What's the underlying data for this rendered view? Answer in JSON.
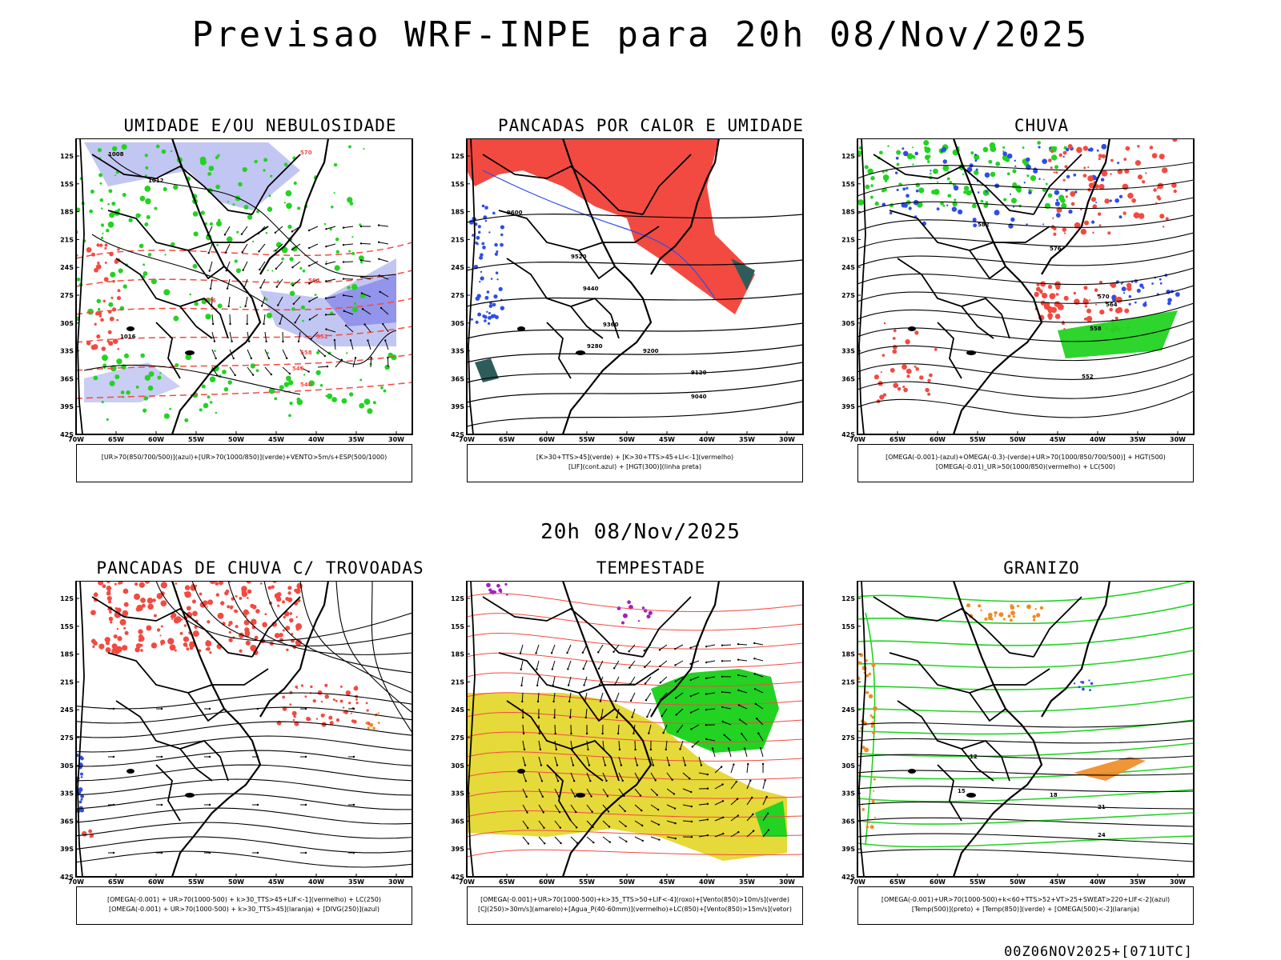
{
  "page": {
    "title": "Previsao WRF-INPE  para 20h 08/Nov/2025",
    "mid_title": "20h 08/Nov/2025",
    "run_stamp": "00Z06NOV2025+[071UTC]"
  },
  "axes": {
    "lat_labels": [
      "12S",
      "15S",
      "18S",
      "21S",
      "24S",
      "27S",
      "30S",
      "33S",
      "36S",
      "39S",
      "42S"
    ],
    "lon_labels": [
      "70W",
      "65W",
      "60W",
      "55W",
      "50W",
      "45W",
      "40W",
      "35W",
      "30W"
    ]
  },
  "colors": {
    "red": "#f24a41",
    "green": "#22d322",
    "blue": "#2f4de6",
    "lavender": "#b3b8ef",
    "yellow": "#e6d93a",
    "orange": "#f08a24",
    "purple": "#a020c0",
    "teal": "#2e5c5a"
  },
  "panels": [
    {
      "id": "umidade",
      "title": "UMIDADE E/OU NEBULOSIDADE",
      "legend": [
        "[UR>70(850/700/500)](azul)+[UR>70(1000/850)](verde)+VENTO>5m/s+ESP(500/1000)"
      ],
      "contour_labels": [
        "1008",
        "1012",
        "1016",
        "576",
        "570",
        "564",
        "558",
        "552",
        "546",
        "540"
      ]
    },
    {
      "id": "pancadas-calor",
      "title": "PANCADAS POR CALOR E UMIDADE",
      "legend": [
        "[K>30+TTS>45](verde) + [K>30+TTS>45+LI<-1](vermelho)",
        "[LIF](cont.azul) + [HGT(300)](linha preta)"
      ],
      "contour_labels": [
        "9600",
        "9520",
        "9440",
        "9360",
        "9280",
        "9200",
        "9120",
        "9040"
      ]
    },
    {
      "id": "chuva",
      "title": "CHUVA",
      "legend": [
        "[OMEGA(-0.001)-(azul)+OMEGA(-0.3)-(verde)+UR>70(1000/850/700/500)] + HGT(500)",
        "[OMEGA(-0.01)_UR>50(1000/850)(vermelho) + LC(500)"
      ],
      "contour_labels": [
        "582",
        "576",
        "570",
        "564",
        "558",
        "552"
      ]
    },
    {
      "id": "pancadas-trovoadas",
      "title": "PANCADAS DE CHUVA C/ TROVOADAS",
      "legend": [
        "[OMEGA(-0.001) + UR>70(1000-500) + k>30_TTS>45+LIF<-1](vermelho) + LC(250)",
        "[OMEGA(-0.001) + UR>70(1000-500) + k>30_TTS>45](laranja) + [DIVG(250)](azul)"
      ],
      "contour_labels": []
    },
    {
      "id": "tempestade",
      "title": "TEMPESTADE",
      "legend": [
        "[OMEGA(-0.001)+UR>70(1000-500)+k>35_TTS>50+LIF<-4](roxo)+[Vento(850)>10m/s](verde)",
        "[CJ(250)>30m/s](amarelo)+[Agua_P(40-60mm)](vermelho)+LC(850)+[Vento(850)>15m/s](vetor)"
      ],
      "contour_labels": []
    },
    {
      "id": "granizo",
      "title": "GRANIZO",
      "legend": [
        "[OMEGA(-0.001)+UR>70(1000-500)+k<60+TTS>52+VT>25+SWEAT>220+LIF<-2](azul)",
        "[Temp(500)](preto) + [Temp(850)](verde) + [OMEGA(500)<-2](laranja)"
      ],
      "contour_labels": [
        "12",
        "15",
        "18",
        "21",
        "24"
      ]
    }
  ]
}
